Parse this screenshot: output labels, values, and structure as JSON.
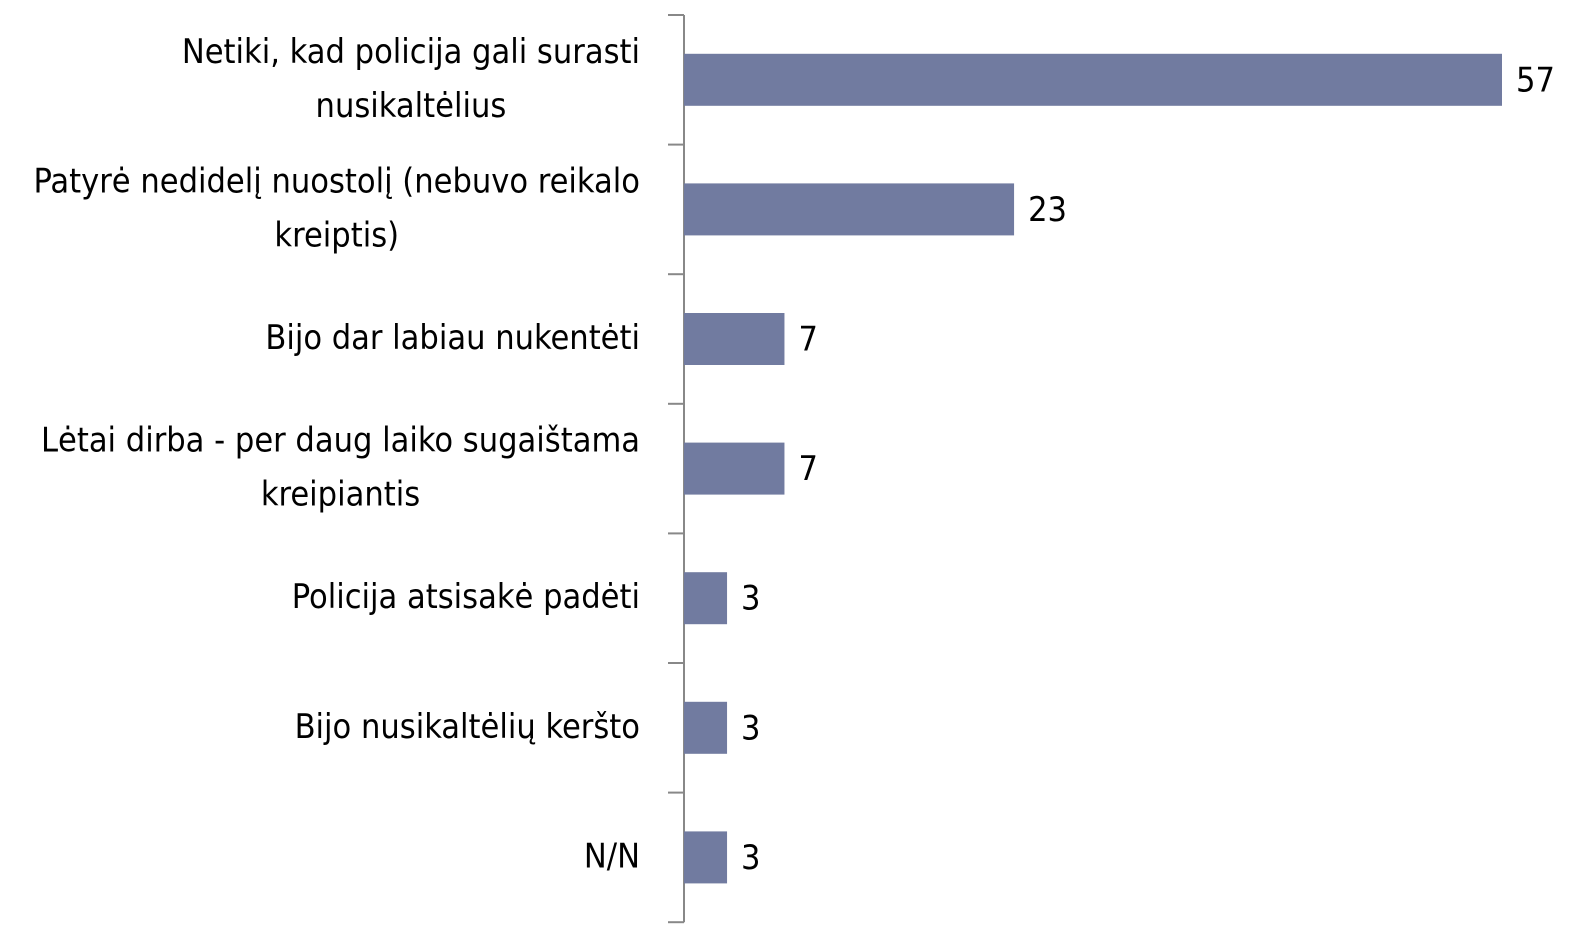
{
  "chart_data": {
    "type": "bar",
    "orientation": "horizontal",
    "categories": [
      "Netiki, kad policija gali surasti nusikaltėlius",
      "Patyrė nedidelį nuostolį (nebuvo reikalo kreiptis)",
      "Bijo dar labiau nukentėti",
      "Lėtai dirba - per daug laiko sugaištama kreipiantis",
      "Policija atsisakė padėti",
      "Bijo nusikaltėlių keršto",
      "N/N"
    ],
    "values": [
      57,
      23,
      7,
      7,
      3,
      3,
      3
    ],
    "color": "#717ba0"
  }
}
